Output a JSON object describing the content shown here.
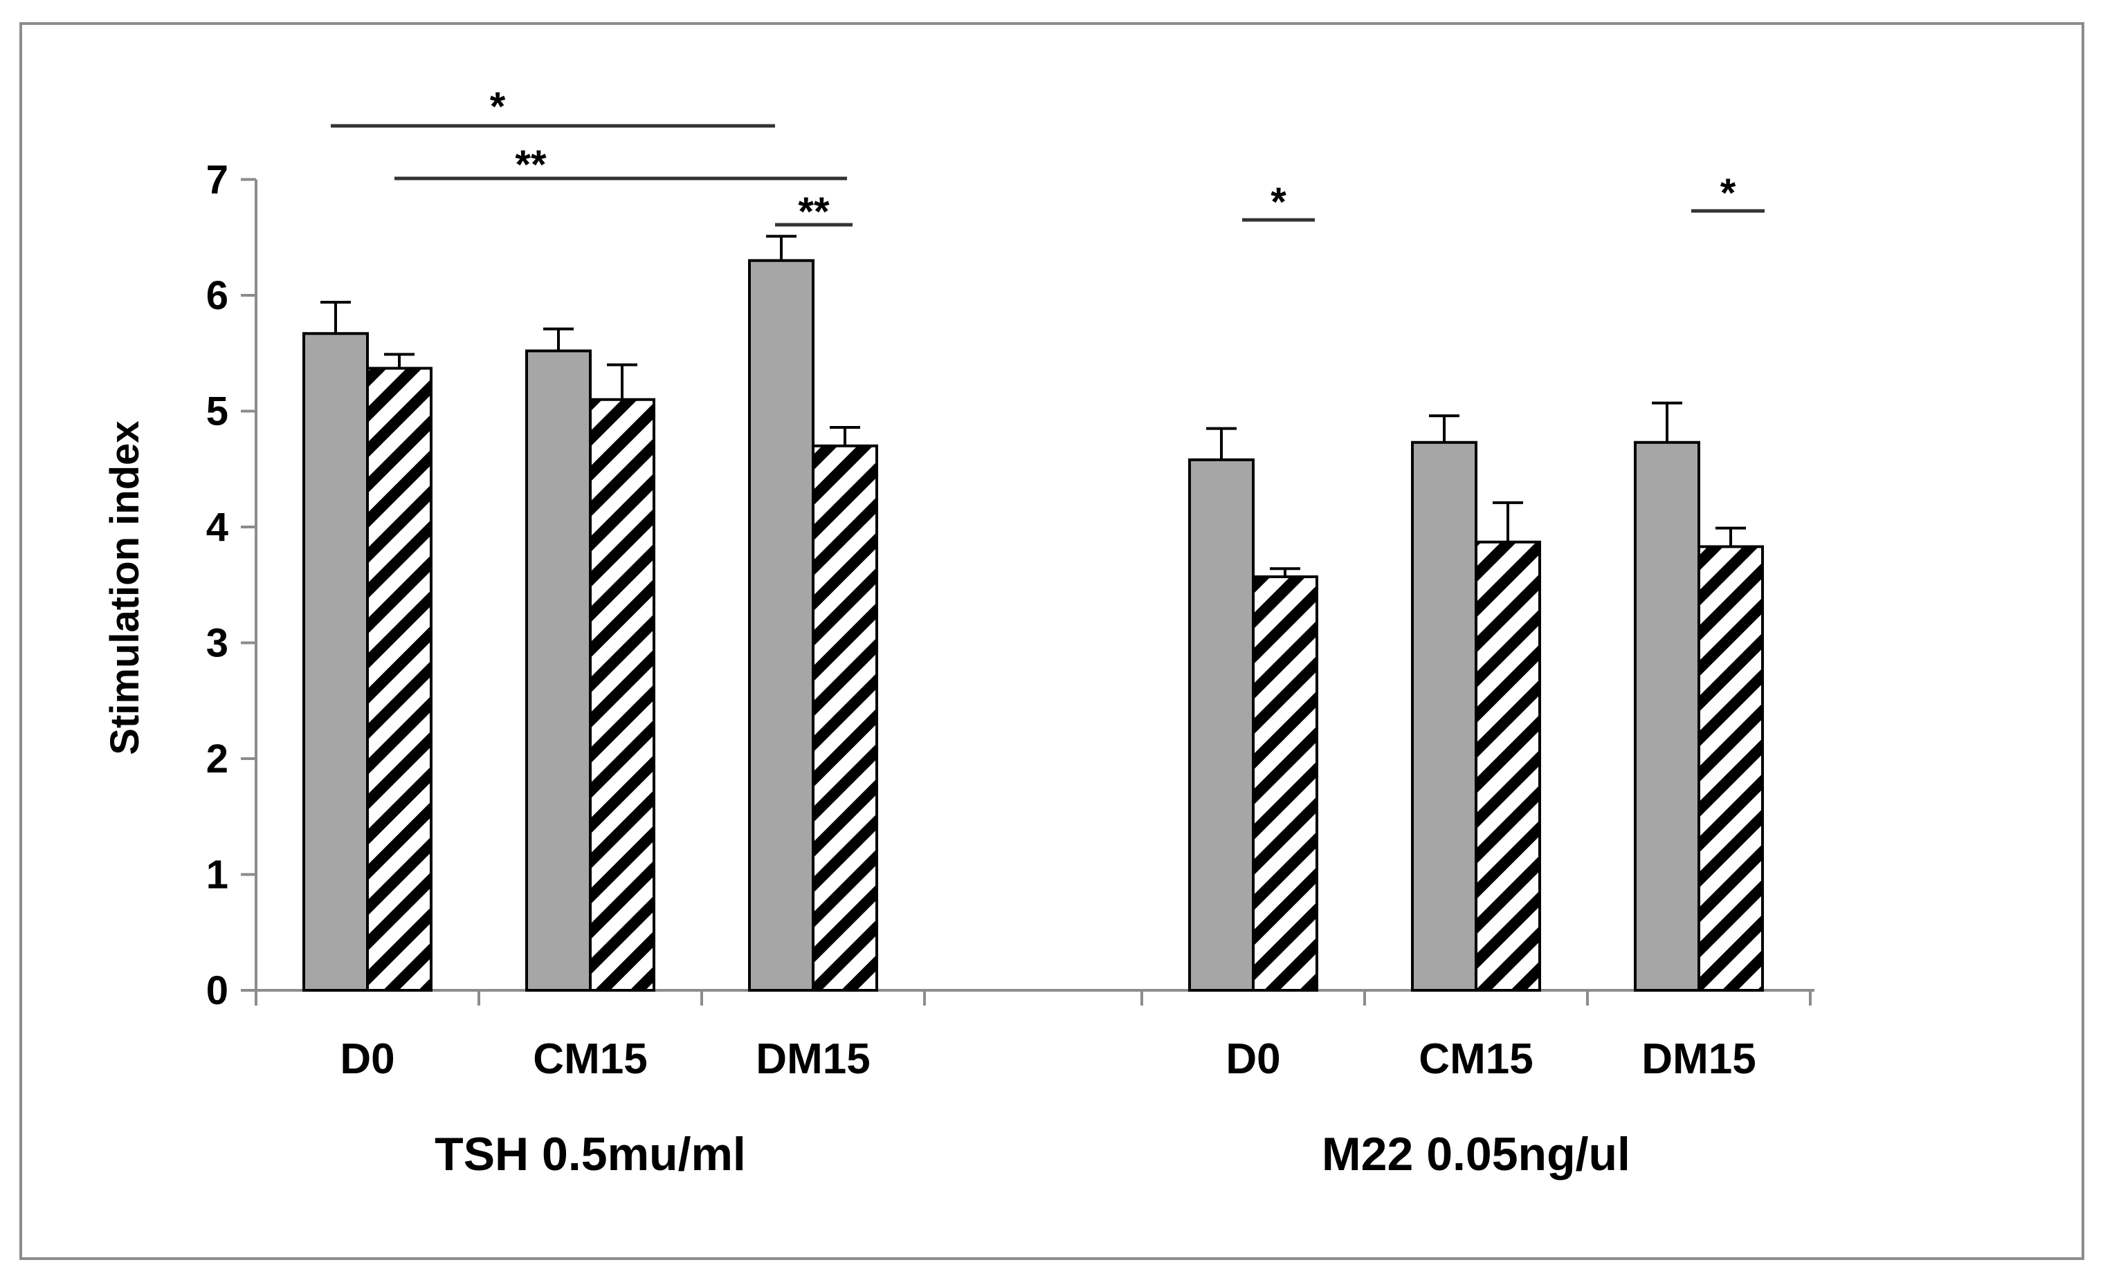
{
  "chart_data": {
    "type": "bar",
    "ylabel": "Stimulation index",
    "ylim": [
      0,
      7
    ],
    "yticks": [
      "0",
      "1",
      "2",
      "3",
      "4",
      "5",
      "6",
      "7"
    ],
    "groups": [
      {
        "label": "TSH 0.5mu/ml",
        "categories": [
          "D0",
          "CM15",
          "DM15"
        ],
        "series": [
          {
            "style": "solid-gray",
            "values": [
              5.67,
              5.52,
              6.3
            ],
            "errors": [
              0.27,
              0.19,
              0.21
            ]
          },
          {
            "style": "hatched",
            "values": [
              5.37,
              5.1,
              4.7
            ],
            "errors": [
              0.12,
              0.3,
              0.16
            ]
          }
        ]
      },
      {
        "label": "M22 0.05ng/ul",
        "categories": [
          "D0",
          "CM15",
          "DM15"
        ],
        "series": [
          {
            "style": "solid-gray",
            "values": [
              4.58,
              4.73,
              4.73
            ],
            "errors": [
              0.27,
              0.23,
              0.34
            ]
          },
          {
            "style": "hatched",
            "values": [
              3.57,
              3.87,
              3.83
            ],
            "errors": [
              0.07,
              0.34,
              0.16
            ]
          }
        ]
      }
    ],
    "significance": [
      {
        "label": "*"
      },
      {
        "label": "**"
      },
      {
        "label": "**"
      },
      {
        "label": "*"
      },
      {
        "label": "*"
      }
    ],
    "colors": {
      "solid": "#a6a6a6",
      "hatch": "#000000",
      "hatch_bg": "#ffffff",
      "axis": "#8c8c8c"
    },
    "grid": false,
    "legend": "none"
  }
}
